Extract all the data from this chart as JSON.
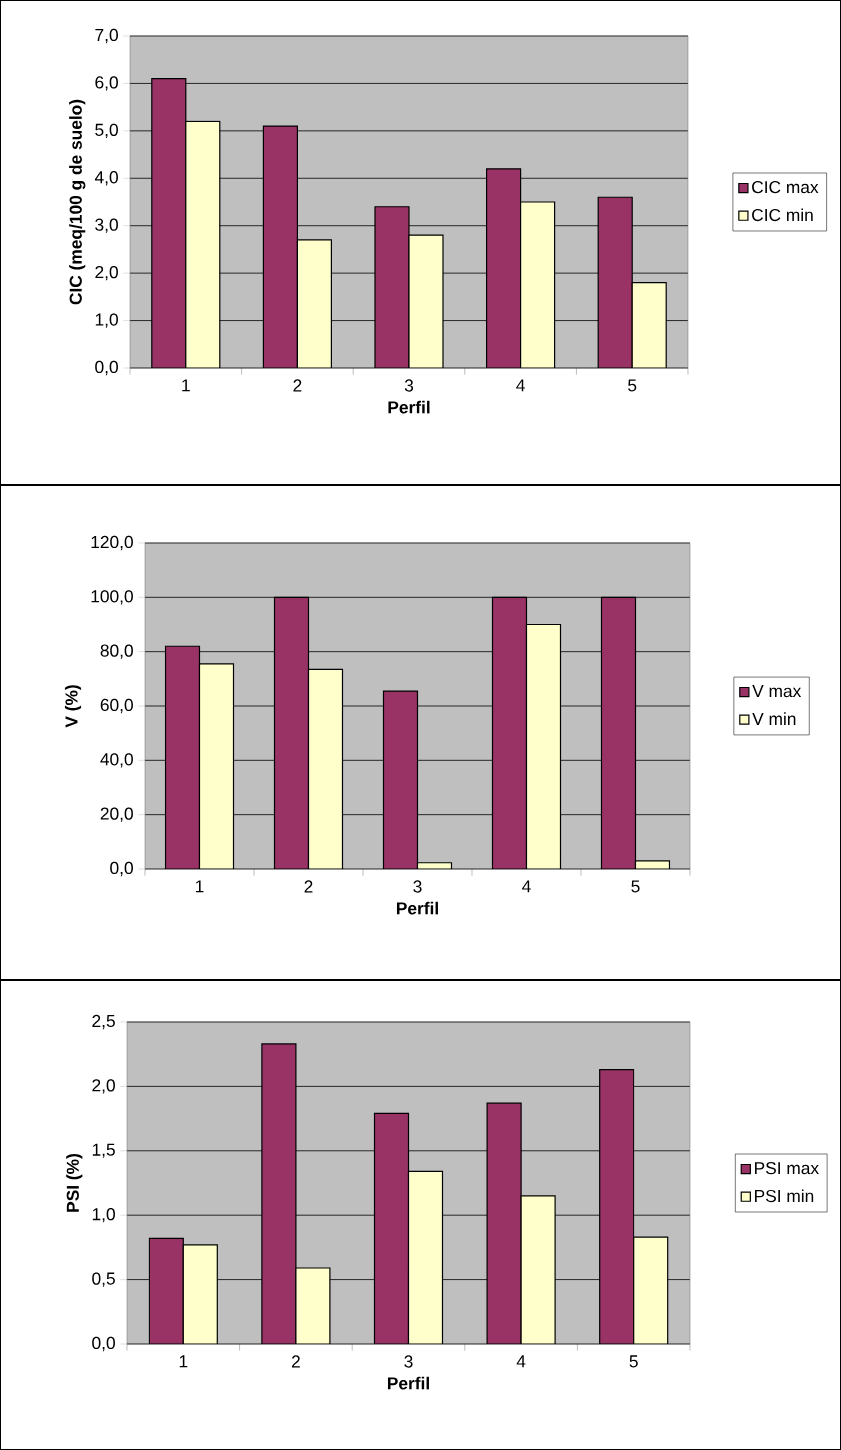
{
  "chart_data": [
    {
      "type": "bar",
      "categories": [
        "1",
        "2",
        "3",
        "4",
        "5"
      ],
      "xlabel": "Perfil",
      "ylabel": "CIC (meq/100 g de suelo)",
      "ylim": [
        0,
        7
      ],
      "yticks": [
        {
          "value": 0,
          "label": "0,0"
        },
        {
          "value": 1,
          "label": "1,0"
        },
        {
          "value": 2,
          "label": "2,0"
        },
        {
          "value": 3,
          "label": "3,0"
        },
        {
          "value": 4,
          "label": "4,0"
        },
        {
          "value": 5,
          "label": "5,0"
        },
        {
          "value": 6,
          "label": "6,0"
        },
        {
          "value": 7,
          "label": "7,0"
        }
      ],
      "grid": "y",
      "legend": "right",
      "series": [
        {
          "name": "CIC max",
          "color": "#993366",
          "values": [
            6.1,
            5.1,
            3.4,
            4.2,
            3.6
          ]
        },
        {
          "name": "CIC min",
          "color": "#ffffcc",
          "values": [
            5.2,
            2.7,
            2.8,
            3.5,
            1.8
          ]
        }
      ]
    },
    {
      "type": "bar",
      "categories": [
        "1",
        "2",
        "3",
        "4",
        "5"
      ],
      "xlabel": "Perfil",
      "ylabel": "V (%)",
      "ylim": [
        0,
        120
      ],
      "yticks": [
        {
          "value": 0,
          "label": "0,0"
        },
        {
          "value": 20,
          "label": "20,0"
        },
        {
          "value": 40,
          "label": "40,0"
        },
        {
          "value": 60,
          "label": "60,0"
        },
        {
          "value": 80,
          "label": "80,0"
        },
        {
          "value": 100,
          "label": "100,0"
        },
        {
          "value": 120,
          "label": "120,0"
        }
      ],
      "grid": "y",
      "legend": "right",
      "series": [
        {
          "name": "V max",
          "color": "#993366",
          "values": [
            82,
            100,
            65.5,
            100,
            100
          ]
        },
        {
          "name": "V min",
          "color": "#ffffcc",
          "values": [
            75.5,
            73.5,
            2.3,
            90,
            3
          ]
        }
      ]
    },
    {
      "type": "bar",
      "categories": [
        "1",
        "2",
        "3",
        "4",
        "5"
      ],
      "xlabel": "Perfil",
      "ylabel": "PSI (%)",
      "ylim": [
        0,
        2.5
      ],
      "yticks": [
        {
          "value": 0,
          "label": "0,0"
        },
        {
          "value": 0.5,
          "label": "0,5"
        },
        {
          "value": 1,
          "label": "1,0"
        },
        {
          "value": 1.5,
          "label": "1,5"
        },
        {
          "value": 2,
          "label": "2,0"
        },
        {
          "value": 2.5,
          "label": "2,5"
        }
      ],
      "grid": "y",
      "legend": "right",
      "series": [
        {
          "name": "PSI max",
          "color": "#993366",
          "values": [
            0.82,
            2.33,
            1.79,
            1.87,
            2.13
          ]
        },
        {
          "name": "PSI min",
          "color": "#ffffcc",
          "values": [
            0.77,
            0.59,
            1.34,
            1.15,
            0.83
          ]
        }
      ]
    }
  ]
}
